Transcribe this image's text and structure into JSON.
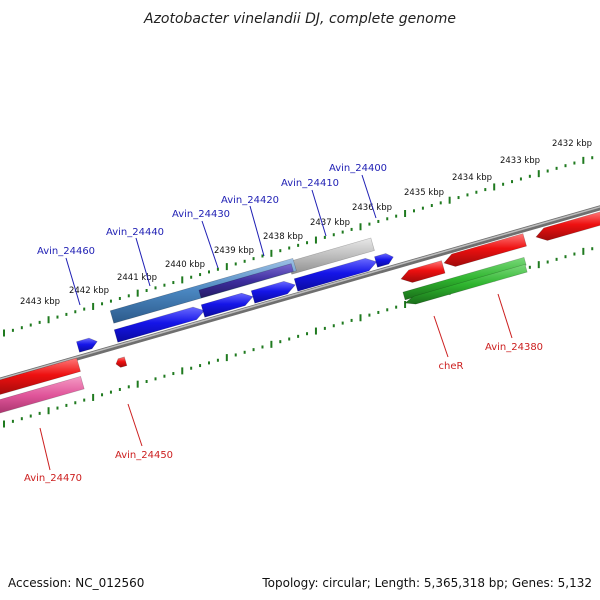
{
  "title": "Azotobacter vinelandii DJ, complete genome",
  "footer": {
    "accession": "Accession: NC_012560",
    "summary": "Topology: circular; Length: 5,365,318 bp; Genes: 5,132"
  },
  "ticks": [
    {
      "kbp": 2432,
      "label": "2432 kbp"
    },
    {
      "kbp": 2433,
      "label": "2433 kbp"
    },
    {
      "kbp": 2434,
      "label": "2434 kbp"
    },
    {
      "kbp": 2435,
      "label": "2435 kbp"
    },
    {
      "kbp": 2436,
      "label": "2436 kbp"
    },
    {
      "kbp": 2437,
      "label": "2437 kbp"
    },
    {
      "kbp": 2438,
      "label": "2438 kbp"
    },
    {
      "kbp": 2439,
      "label": "2439 kbp"
    },
    {
      "kbp": 2440,
      "label": "2440 kbp"
    },
    {
      "kbp": 2441,
      "label": "2441 kbp"
    },
    {
      "kbp": 2442,
      "label": "2442 kbp"
    },
    {
      "kbp": 2443,
      "label": "2443 kbp"
    }
  ],
  "gene_labels": [
    {
      "id": "Avin_24400",
      "text": "Avin_24400",
      "strand": "top"
    },
    {
      "id": "Avin_24410",
      "text": "Avin_24410",
      "strand": "top"
    },
    {
      "id": "Avin_24420",
      "text": "Avin_24420",
      "strand": "top"
    },
    {
      "id": "Avin_24430",
      "text": "Avin_24430",
      "strand": "top"
    },
    {
      "id": "Avin_24440",
      "text": "Avin_24440",
      "strand": "top"
    },
    {
      "id": "Avin_24460",
      "text": "Avin_24460",
      "strand": "top"
    },
    {
      "id": "Avin_24380",
      "text": "Avin_24380",
      "strand": "bottom"
    },
    {
      "id": "cheR",
      "text": "cheR",
      "strand": "bottom"
    },
    {
      "id": "Avin_24450",
      "text": "Avin_24450",
      "strand": "bottom"
    },
    {
      "id": "Avin_24470",
      "text": "Avin_24470",
      "strand": "bottom"
    }
  ],
  "colors": {
    "forward_cds": "#1a1ae6",
    "reverse_cds": "#e61a1a",
    "rna_green": "#2fb52f",
    "pink_feature": "#e0559a",
    "backbone": "#888888",
    "tick": "#1f7a1f",
    "label_blue": "#1f1fb4",
    "label_red": "#cc1f1f"
  }
}
